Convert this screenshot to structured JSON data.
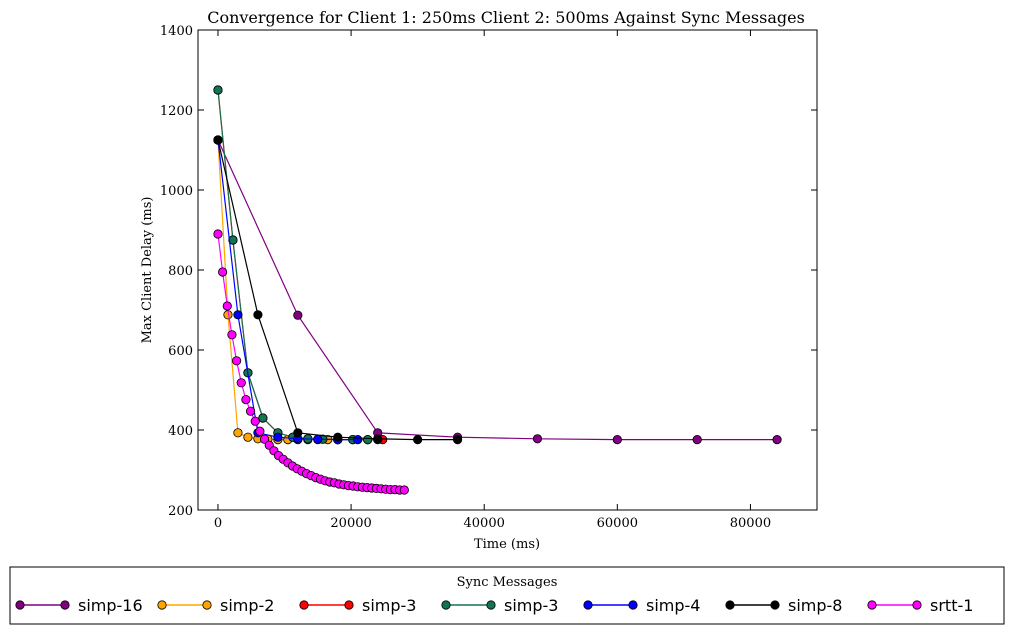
{
  "chart_data": {
    "type": "line",
    "title": "Convergence for Client 1: 250ms Client 2: 500ms Against Sync Messages",
    "xlabel": "Time (ms)",
    "ylabel": "Max Client Delay (ms)",
    "xlim": [
      -3000,
      90000
    ],
    "ylim": [
      200,
      1400
    ],
    "xticks": [
      0,
      20000,
      40000,
      60000,
      80000
    ],
    "yticks": [
      200,
      400,
      600,
      800,
      1000,
      1200,
      1400
    ],
    "grid": false,
    "legend": {
      "title": "Sync Messages",
      "placement": "bottom"
    },
    "series": [
      {
        "name": "simp-16",
        "color": "#800080",
        "x": [
          0,
          12000,
          24000,
          36000,
          48000,
          60000,
          72000,
          84000
        ],
        "y": [
          1125,
          687,
          393,
          382,
          378,
          376,
          376,
          376
        ]
      },
      {
        "name": "simp-2",
        "color": "#ffa500",
        "x": [
          0,
          1500,
          3000,
          4500,
          6000,
          7500,
          9000,
          10500,
          12000,
          13500,
          15000,
          16500
        ],
        "y": [
          1125,
          688,
          393,
          382,
          378,
          377,
          376,
          376,
          376,
          376,
          376,
          376
        ]
      },
      {
        "name": "simp-3",
        "color": "#ff0000",
        "x": [
          0,
          2250,
          4500,
          6750,
          9000,
          11250,
          13500,
          15750,
          18000,
          20250,
          22500,
          24750
        ],
        "y": [
          1250,
          875,
          543,
          430,
          393,
          382,
          378,
          377,
          376,
          376,
          376,
          376
        ]
      },
      {
        "name": "simp-3",
        "color": "#127550",
        "x": [
          0,
          2250,
          4500,
          6750,
          9000,
          11250,
          13500,
          15750,
          18000,
          20250,
          22500,
          24000
        ],
        "y": [
          1250,
          875,
          543,
          430,
          393,
          382,
          378,
          377,
          376,
          376,
          376,
          376
        ]
      },
      {
        "name": "simp-4",
        "color": "#0000ff",
        "x": [
          0,
          3000,
          6000,
          9000,
          12000,
          15000,
          18000,
          21000
        ],
        "y": [
          1125,
          688,
          393,
          382,
          378,
          377,
          376,
          376
        ]
      },
      {
        "name": "simp-8",
        "color": "#000000",
        "x": [
          0,
          6000,
          12000,
          18000,
          24000,
          30000,
          36000
        ],
        "y": [
          1125,
          688,
          393,
          382,
          378,
          376,
          376
        ]
      },
      {
        "name": "srtt-1",
        "color": "#ff00ff",
        "x": [
          0,
          700,
          1400,
          2100,
          2800,
          3500,
          4200,
          4900,
          5600,
          6300,
          7000,
          7700,
          8400,
          9100,
          9800,
          10500,
          11200,
          11900,
          12600,
          13300,
          14000,
          14700,
          15400,
          16100,
          16800,
          17500,
          18200,
          18900,
          19600,
          20300,
          21000,
          21700,
          22400,
          23100,
          23800,
          24500,
          25200,
          25900,
          26600,
          27300,
          28000
        ],
        "y": [
          890,
          795,
          710,
          638,
          573,
          518,
          476,
          447,
          422,
          397,
          377,
          362,
          348,
          336,
          327,
          318,
          310,
          303,
          297,
          291,
          286,
          281,
          277,
          273,
          270,
          268,
          265,
          263,
          261,
          260,
          258,
          257,
          256,
          255,
          254,
          253,
          252,
          251,
          251,
          250,
          250
        ]
      }
    ]
  }
}
